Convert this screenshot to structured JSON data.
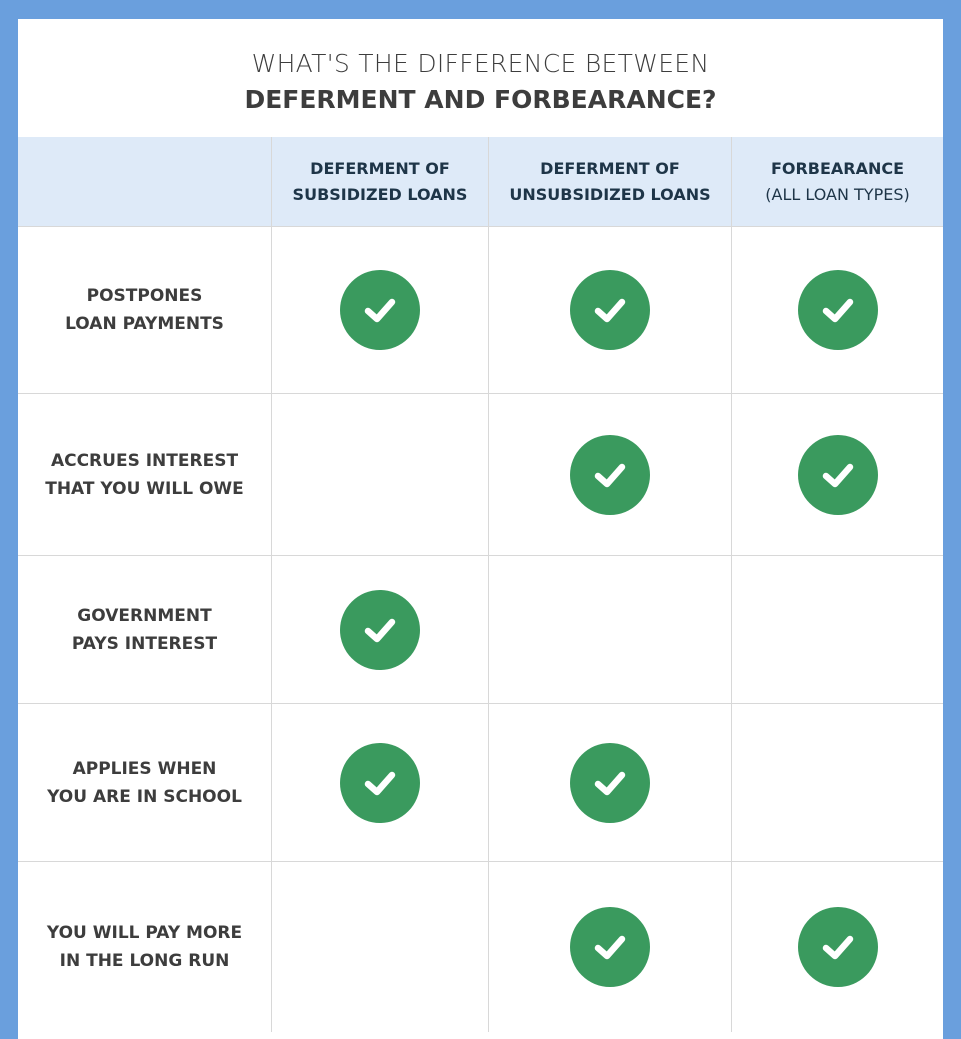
{
  "title": {
    "line1": "WHAT'S THE DIFFERENCE BETWEEN",
    "line2": "DEFERMENT AND FORBEARANCE?"
  },
  "colors": {
    "frame": "#6a9fdd",
    "header_bg": "#deeaf8",
    "check": "#3a9a5e"
  },
  "columns": [
    {
      "line1": "DEFERMENT OF",
      "line2": "SUBSIDIZED LOANS"
    },
    {
      "line1": "DEFERMENT OF",
      "line2": "UNSUBSIDIZED LOANS"
    },
    {
      "line1": "FORBEARANCE",
      "line2": "(ALL LOAN TYPES)"
    }
  ],
  "rows": [
    {
      "line1": "POSTPONES",
      "line2": "LOAN PAYMENTS",
      "checks": [
        true,
        true,
        true
      ]
    },
    {
      "line1": "ACCRUES INTEREST",
      "line2": "THAT YOU WILL OWE",
      "checks": [
        false,
        true,
        true
      ]
    },
    {
      "line1": "GOVERNMENT",
      "line2": "PAYS INTEREST",
      "checks": [
        true,
        false,
        false
      ]
    },
    {
      "line1": "APPLIES WHEN",
      "line2": "YOU ARE IN SCHOOL",
      "checks": [
        true,
        true,
        false
      ]
    },
    {
      "line1": "YOU WILL PAY MORE",
      "line2": "IN THE LONG RUN",
      "checks": [
        false,
        true,
        true
      ]
    }
  ],
  "icon": "check-circle-icon"
}
